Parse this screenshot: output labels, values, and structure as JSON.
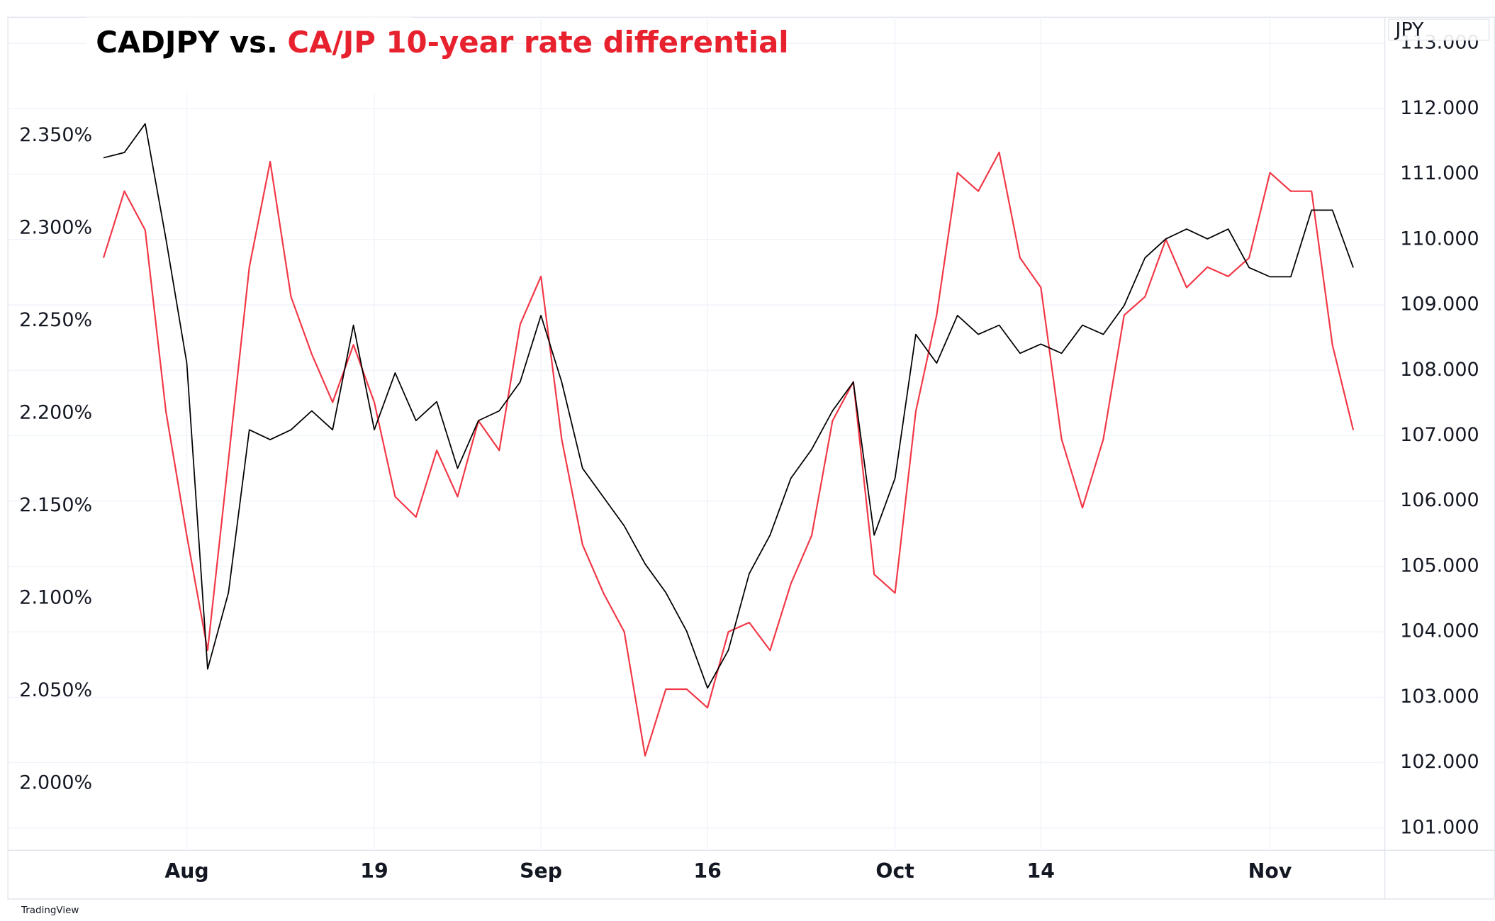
{
  "chart_data": {
    "type": "line",
    "title_parts": [
      {
        "text": "CADJPY vs.",
        "color": "#000000"
      },
      {
        "text": "CA/JP 10-year rate differential",
        "color": "#e8212e"
      }
    ],
    "y2_label": "JPY",
    "watermark": "TradingView",
    "categories": [
      null,
      null,
      null,
      null,
      "Aug",
      null,
      null,
      null,
      null,
      null,
      null,
      null,
      null,
      "19",
      null,
      null,
      null,
      null,
      null,
      null,
      null,
      "Sep",
      null,
      null,
      null,
      null,
      null,
      null,
      null,
      "16",
      null,
      null,
      null,
      null,
      null,
      null,
      null,
      null,
      "Oct",
      null,
      null,
      null,
      null,
      null,
      null,
      "14",
      null,
      null,
      null,
      null,
      null,
      null,
      null,
      null,
      null,
      null,
      "Nov",
      null,
      null,
      null,
      null
    ],
    "series": [
      {
        "color": "#f23645",
        "axis": "y",
        "values": [
          2.284,
          2.32,
          2.299,
          2.201,
          2.134,
          2.072,
          2.175,
          2.279,
          2.336,
          2.263,
          2.232,
          2.206,
          2.237,
          2.206,
          2.155,
          2.144,
          2.18,
          2.155,
          2.196,
          2.18,
          2.248,
          2.274,
          2.186,
          2.129,
          2.103,
          2.082,
          2.015,
          2.051,
          2.051,
          2.041,
          2.082,
          2.087,
          2.072,
          2.108,
          2.134,
          2.196,
          2.217,
          2.113,
          2.103,
          2.201,
          2.253,
          2.33,
          2.32,
          2.341,
          2.284,
          2.268,
          2.186,
          2.149,
          2.186,
          2.253,
          2.263,
          2.294,
          2.268,
          2.279,
          2.274,
          2.284,
          2.33,
          2.32,
          2.32,
          2.237,
          2.191
        ]
      },
      {
        "color": "#000000",
        "axis": "y2",
        "values": [
          111.25,
          111.33,
          111.77,
          110.01,
          108.11,
          103.43,
          104.6,
          107.09,
          106.94,
          107.09,
          107.38,
          107.09,
          108.69,
          107.09,
          107.96,
          107.23,
          107.52,
          106.5,
          107.23,
          107.38,
          107.82,
          108.84,
          107.82,
          106.5,
          106.06,
          105.62,
          105.04,
          104.6,
          104.01,
          103.14,
          103.72,
          104.89,
          105.48,
          106.35,
          106.79,
          107.38,
          107.82,
          105.48,
          106.35,
          108.55,
          108.11,
          108.84,
          108.55,
          108.69,
          108.26,
          108.4,
          108.26,
          108.69,
          108.55,
          108.99,
          109.72,
          110.01,
          110.16,
          110.01,
          110.16,
          109.57,
          109.43,
          109.43,
          110.45,
          110.45,
          109.57
        ]
      }
    ],
    "ylim": [
      1.964,
      2.414
    ],
    "yticks": [
      {
        "value": 2.0,
        "label": "2.000%"
      },
      {
        "value": 2.05,
        "label": "2.050%"
      },
      {
        "value": 2.1,
        "label": "2.100%"
      },
      {
        "value": 2.15,
        "label": "2.150%"
      },
      {
        "value": 2.2,
        "label": "2.200%"
      },
      {
        "value": 2.25,
        "label": "2.250%"
      },
      {
        "value": 2.3,
        "label": "2.300%"
      },
      {
        "value": 2.35,
        "label": "2.350%"
      }
    ],
    "y2lim": [
      100.66,
      113.4
    ],
    "y2ticks": [
      {
        "value": 101,
        "label": "101.000"
      },
      {
        "value": 102,
        "label": "102.000"
      },
      {
        "value": 103,
        "label": "103.000"
      },
      {
        "value": 104,
        "label": "104.000"
      },
      {
        "value": 105,
        "label": "105.000"
      },
      {
        "value": 106,
        "label": "106.000"
      },
      {
        "value": 107,
        "label": "107.000"
      },
      {
        "value": 108,
        "label": "108.000"
      },
      {
        "value": 109,
        "label": "109.000"
      },
      {
        "value": 110,
        "label": "110.000"
      },
      {
        "value": 111,
        "label": "111.000"
      },
      {
        "value": 112,
        "label": "112.000"
      },
      {
        "value": 113,
        "label": "113.000"
      }
    ],
    "grid": true
  }
}
